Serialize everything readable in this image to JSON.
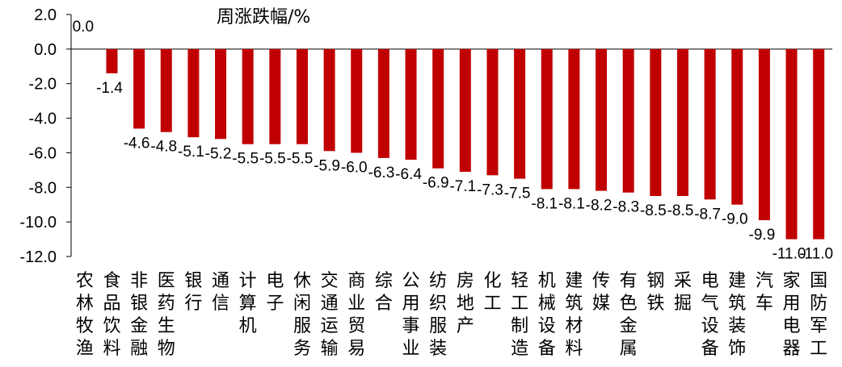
{
  "chart_data": {
    "type": "bar",
    "title": "周涨跌幅/%",
    "xlabel": "",
    "ylabel": "",
    "ylim": [
      -12,
      2
    ],
    "yticks": [
      "2.0",
      "0.0",
      "-2.0",
      "-4.0",
      "-6.0",
      "-8.0",
      "-10.0",
      "-12.0"
    ],
    "ytick_values": [
      2,
      0,
      -2,
      -4,
      -6,
      -8,
      -10,
      -12
    ],
    "grid": false,
    "legend": "none",
    "bar_color": "#C00000",
    "categories": [
      "农林牧渔",
      "食品饮料",
      "非银金融",
      "医药生物",
      "银行",
      "通信",
      "计算机",
      "电子",
      "休闲服务",
      "交通运输",
      "商业贸易",
      "综合",
      "公用事业",
      "纺织服装",
      "房地产",
      "化工",
      "轻工制造",
      "机械设备",
      "建筑材料",
      "传媒",
      "有色金属",
      "钢铁",
      "采掘",
      "电气设备",
      "建筑装饰",
      "汽车",
      "家用电器",
      "国防军工"
    ],
    "values": [
      0.0,
      -1.4,
      -4.6,
      -4.8,
      -5.1,
      -5.2,
      -5.5,
      -5.5,
      -5.5,
      -5.9,
      -6.0,
      -6.3,
      -6.4,
      -6.9,
      -7.1,
      -7.3,
      -7.5,
      -8.1,
      -8.1,
      -8.2,
      -8.3,
      -8.5,
      -8.5,
      -8.7,
      -9.0,
      -9.9,
      -11.0,
      -11.0
    ],
    "data_labels": [
      "0.0",
      "-1.4",
      "-4.6",
      "-4.8",
      "-5.1",
      "-5.2",
      "-5.5",
      "-5.5",
      "-5.5",
      "-5.9",
      "-6.0",
      "-6.3",
      "-6.4",
      "-6.9",
      "-7.1",
      "-7.3",
      "-7.5",
      "-8.1",
      "-8.1",
      "-8.2",
      "-8.3",
      "-8.5",
      "-8.5",
      "-8.7",
      "-9.0",
      "-9.9",
      "-11.0",
      "-11.0"
    ]
  }
}
